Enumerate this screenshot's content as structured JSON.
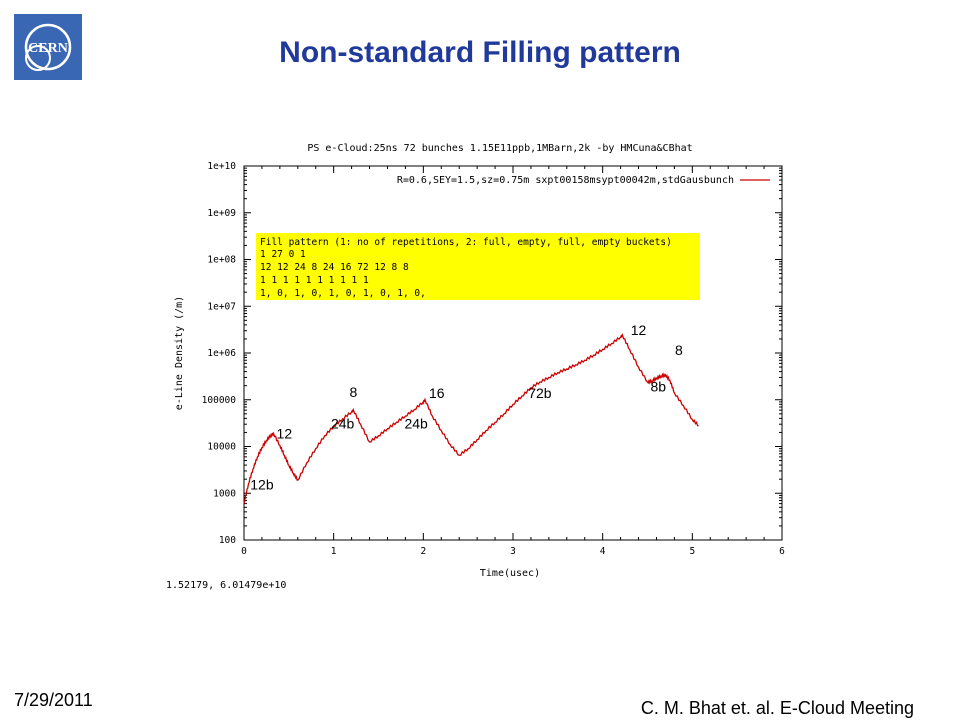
{
  "slide": {
    "title": "Non-standard Filling pattern",
    "logo_text": "CERN",
    "date": "7/29/2011",
    "footer": "C. M. Bhat et. al. E-Cloud Meeting",
    "cursor_readout": "1.52179,  6.01479e+10"
  },
  "chart_data": {
    "type": "line",
    "title": "PS e-Cloud:25ns 72 bunches 1.15E11ppb,1MBarn,2k -by HMCuna&CBhat",
    "xlabel": "Time(usec)",
    "ylabel": "e-Line Density (/m)",
    "xlim": [
      0,
      6
    ],
    "ylim": [
      100,
      10000000000
    ],
    "log_y": true,
    "grid": false,
    "x_ticks": [
      "0",
      "1",
      "2",
      "3",
      "4",
      "5",
      "6"
    ],
    "y_ticks": [
      "100",
      "1000",
      "10000",
      "100000",
      "1e+06",
      "1e+07",
      "1e+08",
      "1e+09",
      "1e+10"
    ],
    "legend": {
      "position": "top-right",
      "entries": [
        "R=0.6,SEY=1.5,sz=0.75m sxpt00158msypt00042m,stdGausbunch"
      ]
    },
    "series_color": "#cc0000",
    "series": [
      {
        "x": [
          0.0,
          0.05,
          0.1,
          0.15,
          0.2,
          0.25,
          0.3,
          0.33,
          0.4,
          0.45,
          0.5,
          0.55,
          0.6,
          0.7,
          0.8,
          0.9,
          1.0,
          1.1,
          1.2,
          1.22,
          1.3,
          1.4,
          1.5,
          1.6,
          1.7,
          1.8,
          1.9,
          2.0,
          2.02,
          2.1,
          2.2,
          2.3,
          2.4,
          2.5,
          2.6,
          2.7,
          2.8,
          2.9,
          3.0,
          3.1,
          3.2,
          3.3,
          3.4,
          3.5,
          3.6,
          3.7,
          3.8,
          3.9,
          4.0,
          4.1,
          4.2,
          4.22,
          4.3,
          4.4,
          4.5,
          4.55,
          4.6,
          4.65,
          4.7,
          4.75,
          4.8,
          4.9,
          5.0,
          5.07
        ],
        "values": [
          600,
          1600,
          3300,
          6000,
          9500,
          13500,
          17500,
          19000,
          10500,
          6500,
          4000,
          2700,
          1900,
          4500,
          9000,
          17000,
          27000,
          39000,
          55000,
          60000,
          30000,
          12500,
          17000,
          24000,
          33000,
          45000,
          62000,
          90000,
          100000,
          45000,
          22000,
          11000,
          6500,
          9000,
          14000,
          22000,
          33000,
          50000,
          80000,
          120000,
          180000,
          240000,
          300000,
          380000,
          460000,
          560000,
          700000,
          900000,
          1200000,
          1600000,
          2200000,
          2400000,
          1200000,
          500000,
          240000,
          250000,
          290000,
          320000,
          340000,
          260000,
          140000,
          75000,
          38000,
          28000
        ]
      }
    ],
    "annotations": [
      {
        "text": "12b",
        "x": 0.2,
        "y": 1200
      },
      {
        "text": "12",
        "x": 0.45,
        "y": 15000
      },
      {
        "text": "24b",
        "x": 1.1,
        "y": 24000
      },
      {
        "text": "8",
        "x": 1.22,
        "y": 115000
      },
      {
        "text": "24b",
        "x": 1.92,
        "y": 24000
      },
      {
        "text": "16",
        "x": 2.15,
        "y": 110000
      },
      {
        "text": "72b",
        "x": 3.3,
        "y": 110000
      },
      {
        "text": "12",
        "x": 4.4,
        "y": 2400000
      },
      {
        "text": "8",
        "x": 4.85,
        "y": 900000
      },
      {
        "text": "8b",
        "x": 4.62,
        "y": 150000
      }
    ],
    "inset_box": {
      "lines": [
        "Fill pattern (1: no of repetitions, 2: full, empty, full, empty buckets)",
        "1 27  0  1",
        "12 12 24 8 24 16 72 12 8 8",
        "1 1 1 1 1 1 1 1 1 1",
        "1, 0, 1, 0, 1, 0, 1, 0, 1, 0,"
      ],
      "color": "#ffff00"
    }
  }
}
